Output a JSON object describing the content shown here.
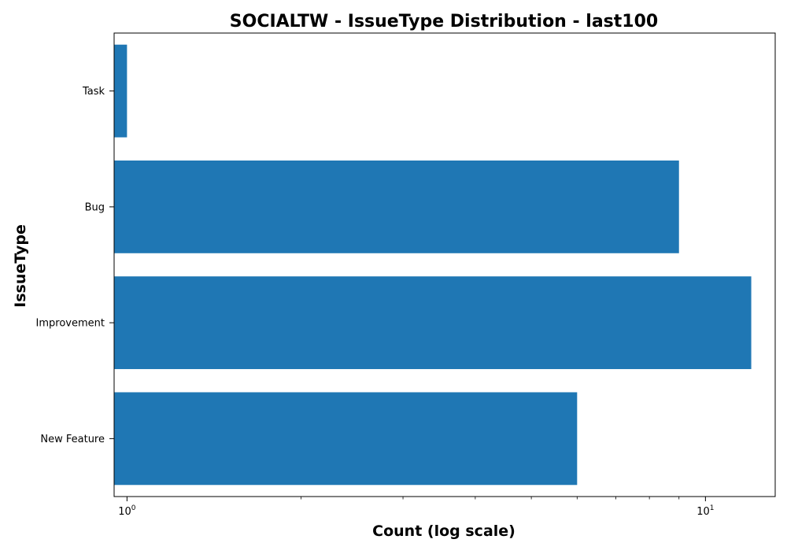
{
  "chart_data": {
    "type": "bar",
    "orientation": "horizontal",
    "title": "SOCIALTW - IssueType Distribution - last100",
    "xlabel": "Count (log scale)",
    "ylabel": "IssueType",
    "x_scale": "log",
    "xlim": [
      0.95,
      13.2
    ],
    "x_ticks": [
      {
        "value": 1,
        "base": "10",
        "exp": "0"
      },
      {
        "value": 10,
        "base": "10",
        "exp": "1"
      }
    ],
    "categories": [
      "New Feature",
      "Improvement",
      "Bug",
      "Task"
    ],
    "values": [
      6,
      12,
      9,
      1
    ],
    "bar_color": "#1f77b4",
    "grid": false,
    "legend": "none"
  }
}
